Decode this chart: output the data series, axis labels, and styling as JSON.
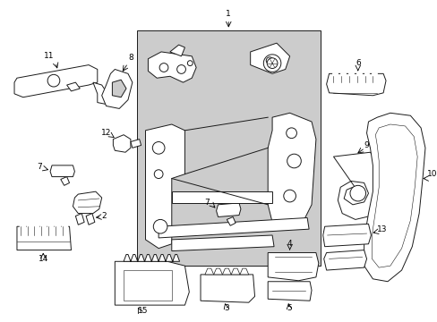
{
  "bg_color": "#ffffff",
  "line_color": "#1a1a1a",
  "shade_color": "#cccccc",
  "fig_width": 4.89,
  "fig_height": 3.6,
  "dpi": 100,
  "lw": 0.7,
  "fontsize": 6.5
}
